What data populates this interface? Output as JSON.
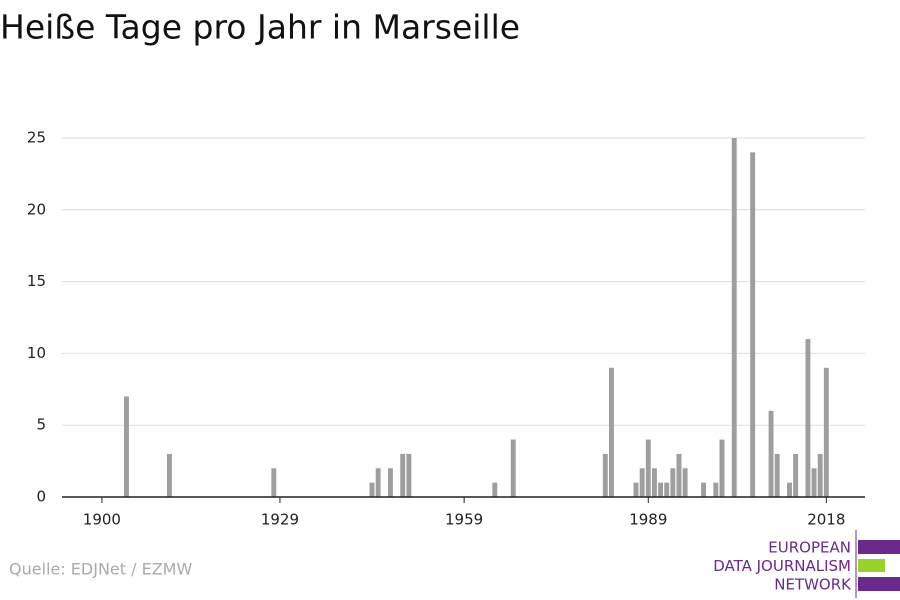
{
  "chart_data": {
    "type": "bar",
    "title": "Heiße Tage pro Jahr in Marseille",
    "x": [
      1904,
      1911,
      1928,
      1944,
      1945,
      1947,
      1949,
      1950,
      1964,
      1967,
      1982,
      1983,
      1987,
      1988,
      1989,
      1990,
      1991,
      1992,
      1993,
      1994,
      1995,
      1998,
      2000,
      2001,
      2003,
      2006,
      2009,
      2010,
      2012,
      2013,
      2015,
      2016,
      2017,
      2018
    ],
    "values": [
      7,
      3,
      2,
      1,
      2,
      2,
      3,
      3,
      1,
      4,
      3,
      9,
      1,
      2,
      4,
      2,
      1,
      1,
      2,
      3,
      2,
      1,
      1,
      4,
      25,
      24,
      6,
      3,
      1,
      3,
      11,
      2,
      3,
      9
    ],
    "color": "#9e9e9e",
    "xlim": [
      1893.5,
      2024.3
    ],
    "xticks": [
      1900,
      1929,
      1959,
      1989,
      2018
    ],
    "ylim": [
      0,
      25
    ],
    "yticks": [
      0,
      5,
      10,
      15,
      20,
      25
    ],
    "grid": true,
    "source": "Quelle: EDJNet / EZMW",
    "logo": [
      "EUROPEAN",
      "DATA JOURNALISM",
      "NETWORK"
    ]
  }
}
